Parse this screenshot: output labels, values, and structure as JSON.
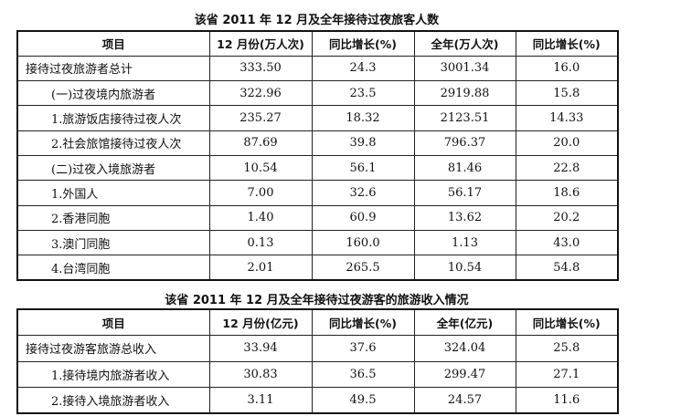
{
  "table1": {
    "title": "该省 2011 年 12 月及全年接待过夜旅客人数",
    "headers": [
      "项目",
      "12 月份(万人次)",
      "同比增长(%)",
      "全年(万人次)",
      "同比增长(%)"
    ],
    "rows": [
      {
        "label": "接待过夜旅游者总计",
        "dec": "333.50",
        "dec_yoy": "24.3",
        "year": "3001.34",
        "year_yoy": "16.0"
      },
      {
        "label": "(一)过夜境内旅游者",
        "dec": "322.96",
        "dec_yoy": "23.5",
        "year": "2919.88",
        "year_yoy": "15.8"
      },
      {
        "label": "1.旅游饭店接待过夜人次",
        "dec": "235.27",
        "dec_yoy": "18.32",
        "year": "2123.51",
        "year_yoy": "14.33"
      },
      {
        "label": "2.社会旅馆接待过夜人次",
        "dec": "87.69",
        "dec_yoy": "39.8",
        "year": "796.37",
        "year_yoy": "20.0"
      },
      {
        "label": "(二)过夜入境旅游者",
        "dec": "10.54",
        "dec_yoy": "56.1",
        "year": "81.46",
        "year_yoy": "22.8"
      },
      {
        "label": "1.外国人",
        "dec": "7.00",
        "dec_yoy": "32.6",
        "year": "56.17",
        "year_yoy": "18.6"
      },
      {
        "label": "2.香港同胞",
        "dec": "1.40",
        "dec_yoy": "60.9",
        "year": "13.62",
        "year_yoy": "20.2"
      },
      {
        "label": "3.澳门同胞",
        "dec": "0.13",
        "dec_yoy": "160.0",
        "year": "1.13",
        "year_yoy": "43.0"
      },
      {
        "label": "4.台湾同胞",
        "dec": "2.01",
        "dec_yoy": "265.5",
        "year": "10.54",
        "year_yoy": "54.8"
      }
    ]
  },
  "table2": {
    "title": "该省 2011 年 12 月及全年接待过夜游客的旅游收入情况",
    "headers": [
      "项目",
      "12 月份(亿元)",
      "同比增长(%)",
      "全年(亿元)",
      "同比增长(%)"
    ],
    "rows": [
      {
        "label": "接待过夜游客旅游总收入",
        "dec": "33.94",
        "dec_yoy": "37.6",
        "year": "324.04",
        "year_yoy": "25.8"
      },
      {
        "label": "1.接待境内旅游者收入",
        "dec": "30.83",
        "dec_yoy": "36.5",
        "year": "299.47",
        "year_yoy": "27.1"
      },
      {
        "label": "2.接待入境旅游者收入",
        "dec": "3.11",
        "dec_yoy": "49.5",
        "year": "24.57",
        "year_yoy": "11.6"
      }
    ]
  }
}
